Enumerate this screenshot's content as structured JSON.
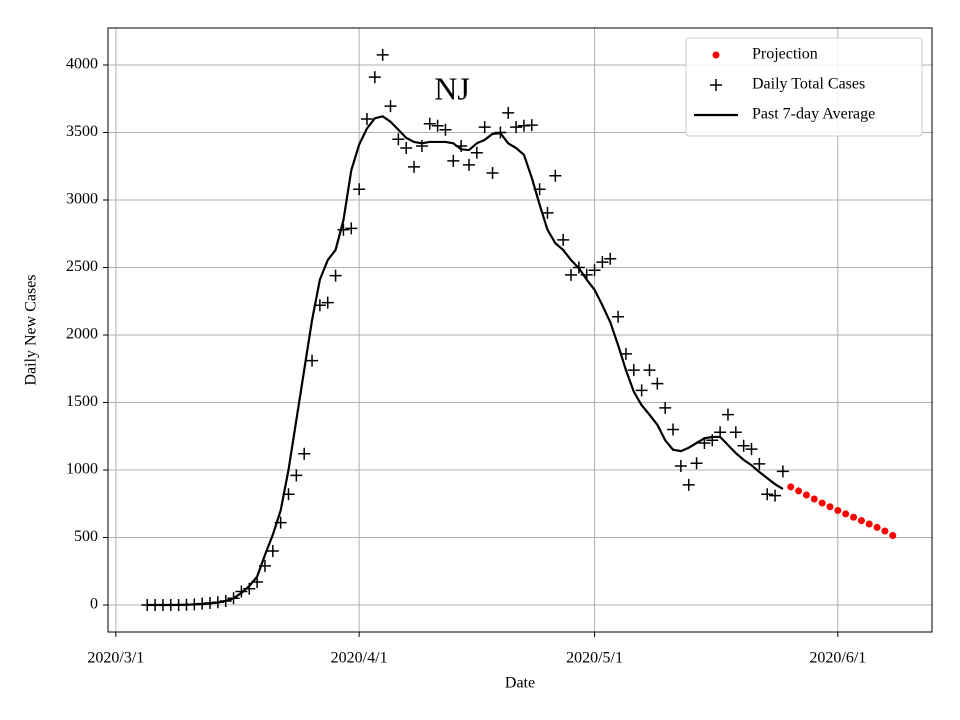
{
  "chart_data": {
    "type": "scatter-line",
    "title": "NJ",
    "x_label": "Date",
    "y_label": "Daily New Cases",
    "xlim": [
      "2020/2/29",
      "2020/6/13"
    ],
    "xticks": [
      "2020/3/1",
      "2020/4/1",
      "2020/5/1",
      "2020/6/1"
    ],
    "ylim": [
      -200,
      4274
    ],
    "yticks": [
      0,
      500,
      1000,
      1500,
      2000,
      2500,
      3000,
      3500,
      4000
    ],
    "grid": true,
    "legend": "upper right",
    "x": [
      "2020/3/5",
      "2020/3/6",
      "2020/3/7",
      "2020/3/8",
      "2020/3/9",
      "2020/3/10",
      "2020/3/11",
      "2020/3/12",
      "2020/3/13",
      "2020/3/14",
      "2020/3/15",
      "2020/3/16",
      "2020/3/17",
      "2020/3/18",
      "2020/3/19",
      "2020/3/20",
      "2020/3/21",
      "2020/3/22",
      "2020/3/23",
      "2020/3/24",
      "2020/3/25",
      "2020/3/26",
      "2020/3/27",
      "2020/3/28",
      "2020/3/29",
      "2020/3/30",
      "2020/3/31",
      "2020/4/1",
      "2020/4/2",
      "2020/4/3",
      "2020/4/4",
      "2020/4/5",
      "2020/4/6",
      "2020/4/7",
      "2020/4/8",
      "2020/4/9",
      "2020/4/10",
      "2020/4/11",
      "2020/4/12",
      "2020/4/13",
      "2020/4/14",
      "2020/4/15",
      "2020/4/16",
      "2020/4/17",
      "2020/4/18",
      "2020/4/19",
      "2020/4/20",
      "2020/4/21",
      "2020/4/22",
      "2020/4/23",
      "2020/4/24",
      "2020/4/25",
      "2020/4/26",
      "2020/4/27",
      "2020/4/28",
      "2020/4/29",
      "2020/4/30",
      "2020/5/1",
      "2020/5/2",
      "2020/5/3",
      "2020/5/4",
      "2020/5/5",
      "2020/5/6",
      "2020/5/7",
      "2020/5/8",
      "2020/5/9",
      "2020/5/10",
      "2020/5/11",
      "2020/5/12",
      "2020/5/13",
      "2020/5/14",
      "2020/5/15",
      "2020/5/16",
      "2020/5/17",
      "2020/5/18",
      "2020/5/19",
      "2020/5/20",
      "2020/5/21",
      "2020/5/22",
      "2020/5/23",
      "2020/5/24",
      "2020/5/25"
    ],
    "series": [
      {
        "name": "Projection",
        "color": "#ff0000",
        "marker": "o",
        "x": [
          "2020/5/26",
          "2020/5/27",
          "2020/5/28",
          "2020/5/29",
          "2020/5/30",
          "2020/5/31",
          "2020/6/1",
          "2020/6/2",
          "2020/6/3",
          "2020/6/4",
          "2020/6/5",
          "2020/6/6",
          "2020/6/7",
          "2020/6/8"
        ],
        "values": [
          875,
          845,
          815,
          785,
          755,
          728,
          700,
          675,
          650,
          625,
          600,
          575,
          548,
          515
        ]
      },
      {
        "name": "Daily Total Cases",
        "color": "#000000",
        "marker": "+",
        "values": [
          0,
          0,
          0,
          0,
          0,
          2,
          5,
          10,
          15,
          20,
          30,
          50,
          100,
          120,
          170,
          290,
          400,
          610,
          820,
          960,
          1120,
          1810,
          2220,
          2240,
          2440,
          2780,
          2790,
          3080,
          3600,
          3910,
          4075,
          3695,
          3450,
          3385,
          3245,
          3400,
          3565,
          3550,
          3520,
          3290,
          3400,
          3260,
          3350,
          3540,
          3200,
          3500,
          3645,
          3540,
          3550,
          3555,
          3080,
          2905,
          3180,
          2705,
          2445,
          2500,
          2445,
          2480,
          2540,
          2565,
          2135,
          1860,
          1740,
          1590,
          1740,
          1640,
          1460,
          1300,
          1030,
          890,
          1050,
          1200,
          1220,
          1280,
          1410,
          1280,
          1180,
          1155,
          1045,
          820,
          810,
          990
        ]
      },
      {
        "name": "Past 7-day Average",
        "color": "#000000",
        "marker": "line",
        "values": [
          0,
          0,
          0,
          0,
          1,
          2,
          4,
          7,
          12,
          18,
          30,
          50,
          90,
          140,
          210,
          370,
          520,
          700,
          1000,
          1370,
          1740,
          2110,
          2410,
          2555,
          2630,
          2850,
          3220,
          3410,
          3530,
          3605,
          3620,
          3580,
          3520,
          3460,
          3430,
          3420,
          3430,
          3430,
          3430,
          3420,
          3375,
          3370,
          3420,
          3445,
          3490,
          3495,
          3420,
          3385,
          3335,
          3165,
          2965,
          2780,
          2680,
          2630,
          2555,
          2495,
          2410,
          2335,
          2220,
          2095,
          1925,
          1740,
          1580,
          1480,
          1410,
          1335,
          1220,
          1150,
          1140,
          1165,
          1200,
          1235,
          1245,
          1245,
          1185,
          1125,
          1075,
          1035,
          985,
          940,
          895,
          860
        ]
      }
    ]
  }
}
